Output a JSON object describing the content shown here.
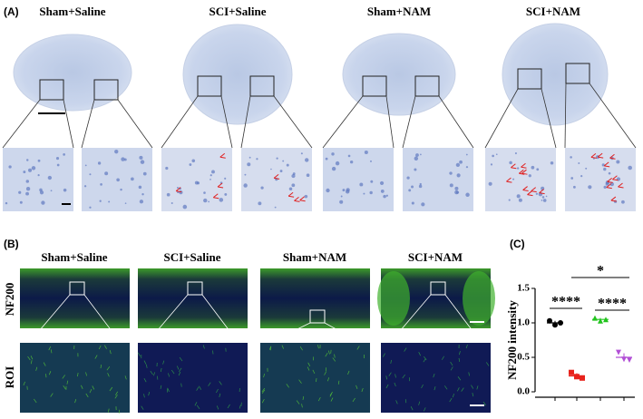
{
  "panel_a": {
    "label": "(A)",
    "groups": [
      "Sham+Saline",
      "SCI+Saline",
      "Sham+NAM",
      "SCI+NAM"
    ]
  },
  "panel_b": {
    "label": "(B)",
    "groups": [
      "Sham+Saline",
      "SCI+Saline",
      "Sham+NAM",
      "SCI+NAM"
    ],
    "rows": [
      "NF200",
      "ROI"
    ]
  },
  "panel_c": {
    "label": "(C)"
  },
  "chart_data": {
    "type": "scatter",
    "ylabel": "NF200 intensity",
    "ylim": [
      0,
      1.5
    ],
    "yticks": [
      {
        "value": 0,
        "label": "0.0"
      },
      0.5,
      {
        "value": 1,
        "label": "1.0"
      },
      1.5
    ],
    "groups": [
      {
        "color": "#000000",
        "marker": "circle",
        "values": [
          1.03,
          0.97,
          1.0
        ],
        "mean": 1.0,
        "error": 0.03
      },
      {
        "color": "#e8231c",
        "marker": "square",
        "values": [
          0.28,
          0.22,
          0.2
        ],
        "mean": 0.23,
        "error": 0.04
      },
      {
        "color": "#22c41e",
        "marker": "triangle",
        "values": [
          1.07,
          1.03,
          1.05
        ],
        "mean": 1.05,
        "error": 0.02
      },
      {
        "color": "#b24fd6",
        "marker": "triangle-down",
        "values": [
          0.57,
          0.47,
          0.46
        ],
        "mean": 0.5,
        "error": 0.06
      }
    ],
    "comparisons": [
      {
        "groups": [
          0,
          1
        ],
        "label": "****"
      },
      {
        "groups": [
          1,
          3
        ],
        "label": "*"
      },
      {
        "groups": [
          2,
          3
        ],
        "label": "****"
      }
    ]
  }
}
